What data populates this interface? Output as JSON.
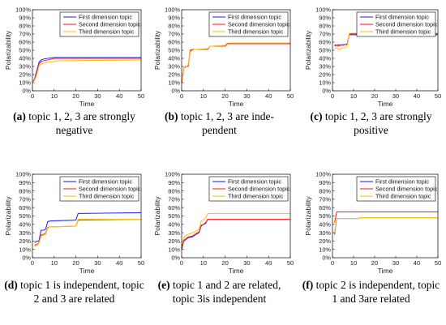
{
  "colors": {
    "first": "#2b2bff",
    "second": "#ff2b2b",
    "third": "#ffc21a",
    "axis": "#000000",
    "grid": "#e6e6e6"
  },
  "chart_data": [
    {
      "type": "line",
      "xlabel": "Time",
      "ylabel": "Polarizability",
      "xlim": [
        0,
        50
      ],
      "ylim": [
        0,
        100
      ],
      "xticks": [
        0,
        10,
        20,
        30,
        40,
        50
      ],
      "yticks": [
        "0%",
        "10%",
        "20%",
        "30%",
        "40%",
        "50%",
        "60%",
        "70%",
        "80%",
        "90%",
        "100%"
      ],
      "legend": "top-right",
      "caption": {
        "letter": "(a)",
        "text": " topic 1, 2, 3 are strongly negative"
      },
      "series": [
        {
          "name": "First dimension topic",
          "x": [
            0,
            1,
            2,
            3,
            4,
            5,
            7,
            10,
            50
          ],
          "y": [
            10,
            15,
            25,
            35,
            38,
            39,
            40,
            41,
            41
          ]
        },
        {
          "name": "Second dimension topic",
          "x": [
            0,
            1,
            2,
            3,
            4,
            5,
            7,
            10,
            50
          ],
          "y": [
            10,
            14,
            22,
            33,
            36,
            37,
            38,
            40,
            40
          ]
        },
        {
          "name": "Third dimension topic",
          "x": [
            0,
            1,
            2,
            3,
            4,
            5,
            7,
            10,
            12,
            50
          ],
          "y": [
            10,
            13,
            20,
            30,
            33,
            34,
            35,
            36,
            37,
            38
          ]
        }
      ]
    },
    {
      "type": "line",
      "xlabel": "Time",
      "ylabel": "Polarizability",
      "xlim": [
        0,
        50
      ],
      "ylim": [
        0,
        100
      ],
      "xticks": [
        0,
        10,
        20,
        30,
        40,
        50
      ],
      "yticks": [
        "0%",
        "10%",
        "20%",
        "30%",
        "40%",
        "50%",
        "60%",
        "70%",
        "80%",
        "90%",
        "100%"
      ],
      "legend": "top-right",
      "caption": {
        "letter": "(b)",
        "text": " topic 1, 2, 3 are inde- pendent"
      },
      "series": [
        {
          "name": "First dimension topic",
          "x": [
            0,
            1,
            2,
            3,
            4,
            5,
            6,
            12,
            13,
            20,
            21,
            50
          ],
          "y": [
            10,
            28,
            30,
            30,
            50,
            51,
            51,
            51,
            55,
            55,
            58,
            58
          ]
        },
        {
          "name": "Second dimension topic",
          "x": [
            0,
            1,
            2,
            3,
            4,
            5,
            6,
            12,
            13,
            20,
            21,
            50
          ],
          "y": [
            10,
            28,
            30,
            30,
            50,
            51,
            51,
            51,
            55,
            55,
            58,
            58
          ]
        },
        {
          "name": "Third dimension topic",
          "x": [
            0,
            1,
            2,
            3,
            4,
            5,
            6,
            12,
            13,
            20,
            21,
            50
          ],
          "y": [
            12,
            28,
            29,
            32,
            48,
            50,
            51,
            52,
            55,
            56,
            59,
            59
          ]
        }
      ]
    },
    {
      "type": "line",
      "xlabel": "Time",
      "ylabel": "Polarizability",
      "xlim": [
        0,
        50
      ],
      "ylim": [
        0,
        100
      ],
      "xticks": [
        0,
        10,
        20,
        30,
        40,
        50
      ],
      "yticks": [
        "0%",
        "10%",
        "20%",
        "30%",
        "40%",
        "50%",
        "60%",
        "70%",
        "80%",
        "90%",
        "100%"
      ],
      "legend": "top-right",
      "caption": {
        "letter": "(c)",
        "text": " topic 1, 2, 3 are strongly positive"
      },
      "series": [
        {
          "name": "First dimension topic",
          "x": [
            1,
            2,
            3,
            4,
            5,
            6,
            7,
            8,
            50
          ],
          "y": [
            57,
            56,
            57,
            56,
            57,
            57,
            58,
            70,
            70
          ]
        },
        {
          "name": "Second dimension topic",
          "x": [
            1,
            2,
            3,
            4,
            5,
            6,
            7,
            8,
            50
          ],
          "y": [
            55,
            56,
            55,
            57,
            56,
            57,
            57,
            69,
            69
          ]
        },
        {
          "name": "Third dimension topic",
          "x": [
            1,
            2,
            3,
            4,
            5,
            6,
            7,
            8,
            50
          ],
          "y": [
            52,
            53,
            51,
            52,
            53,
            53,
            55,
            71,
            71
          ]
        }
      ]
    },
    {
      "type": "line",
      "xlabel": "Time",
      "ylabel": "Polarizability",
      "xlim": [
        0,
        50
      ],
      "ylim": [
        0,
        100
      ],
      "xticks": [
        0,
        10,
        20,
        30,
        40,
        50
      ],
      "yticks": [
        "0%",
        "10%",
        "20%",
        "30%",
        "40%",
        "50%",
        "60%",
        "70%",
        "80%",
        "90%",
        "100%"
      ],
      "legend": "top-right",
      "caption": {
        "letter": "(d)",
        "text": " topic 1 is independent, topic 2 and 3 are related"
      },
      "series": [
        {
          "name": "First dimension topic",
          "x": [
            1,
            2,
            3,
            4,
            5,
            6,
            7,
            8,
            20,
            21,
            50
          ],
          "y": [
            18,
            20,
            20,
            33,
            33,
            34,
            43,
            44,
            45,
            53,
            54
          ]
        },
        {
          "name": "Second dimension topic",
          "x": [
            1,
            2,
            3,
            4,
            5,
            6,
            7,
            8,
            20,
            21,
            50
          ],
          "y": [
            15,
            16,
            18,
            27,
            28,
            29,
            36,
            37,
            38,
            45,
            46
          ]
        },
        {
          "name": "Third dimension topic",
          "x": [
            1,
            2,
            3,
            4,
            5,
            6,
            7,
            8,
            20,
            21,
            50
          ],
          "y": [
            13,
            15,
            17,
            26,
            27,
            28,
            35,
            37,
            38,
            46,
            46
          ]
        }
      ]
    },
    {
      "type": "line",
      "xlabel": "Time",
      "ylabel": "Polarizability",
      "xlim": [
        0,
        50
      ],
      "ylim": [
        0,
        100
      ],
      "xticks": [
        0,
        10,
        20,
        30,
        40,
        50
      ],
      "yticks": [
        "0%",
        "10%",
        "20%",
        "30%",
        "40%",
        "50%",
        "60%",
        "70%",
        "80%",
        "90%",
        "100%"
      ],
      "legend": "top-right",
      "caption": {
        "letter": "(e)",
        "text": " topic 1 and 2 are related, topic 3is independent"
      },
      "series": [
        {
          "name": "First dimension topic",
          "x": [
            0,
            1,
            2,
            3,
            5,
            6,
            8,
            9,
            10,
            11,
            12,
            50
          ],
          "y": [
            10,
            20,
            22,
            24,
            25,
            27,
            30,
            38,
            40,
            41,
            46,
            46
          ]
        },
        {
          "name": "Second dimension topic",
          "x": [
            0,
            1,
            2,
            3,
            5,
            6,
            8,
            9,
            10,
            11,
            12,
            50
          ],
          "y": [
            12,
            21,
            23,
            25,
            26,
            28,
            31,
            39,
            40,
            42,
            46,
            46
          ]
        },
        {
          "name": "Third dimension topic",
          "x": [
            0,
            1,
            2,
            3,
            5,
            6,
            8,
            9,
            10,
            11,
            12,
            50
          ],
          "y": [
            15,
            25,
            27,
            28,
            30,
            31,
            34,
            44,
            45,
            47,
            53,
            53
          ]
        }
      ]
    },
    {
      "type": "line",
      "xlabel": "Time",
      "ylabel": "Polarizability",
      "xlim": [
        0,
        50
      ],
      "ylim": [
        0,
        100
      ],
      "xticks": [
        0,
        10,
        20,
        30,
        40,
        50
      ],
      "yticks": [
        "0%",
        "10%",
        "20%",
        "30%",
        "40%",
        "50%",
        "60%",
        "70%",
        "80%",
        "90%",
        "100%"
      ],
      "legend": "top-right",
      "caption": {
        "letter": "(f)",
        "text": " topic 2 is independent, topic 1 and 3are related"
      },
      "series": [
        {
          "name": "First dimension topic",
          "x": [
            1,
            2,
            12,
            13,
            50
          ],
          "y": [
            28,
            47,
            47,
            48,
            48
          ]
        },
        {
          "name": "Second dimension topic",
          "x": [
            1,
            2,
            50
          ],
          "y": [
            42,
            55,
            55
          ]
        },
        {
          "name": "Third dimension topic",
          "x": [
            1,
            2,
            12,
            13,
            50
          ],
          "y": [
            30,
            47,
            47,
            48,
            48
          ]
        }
      ]
    }
  ]
}
